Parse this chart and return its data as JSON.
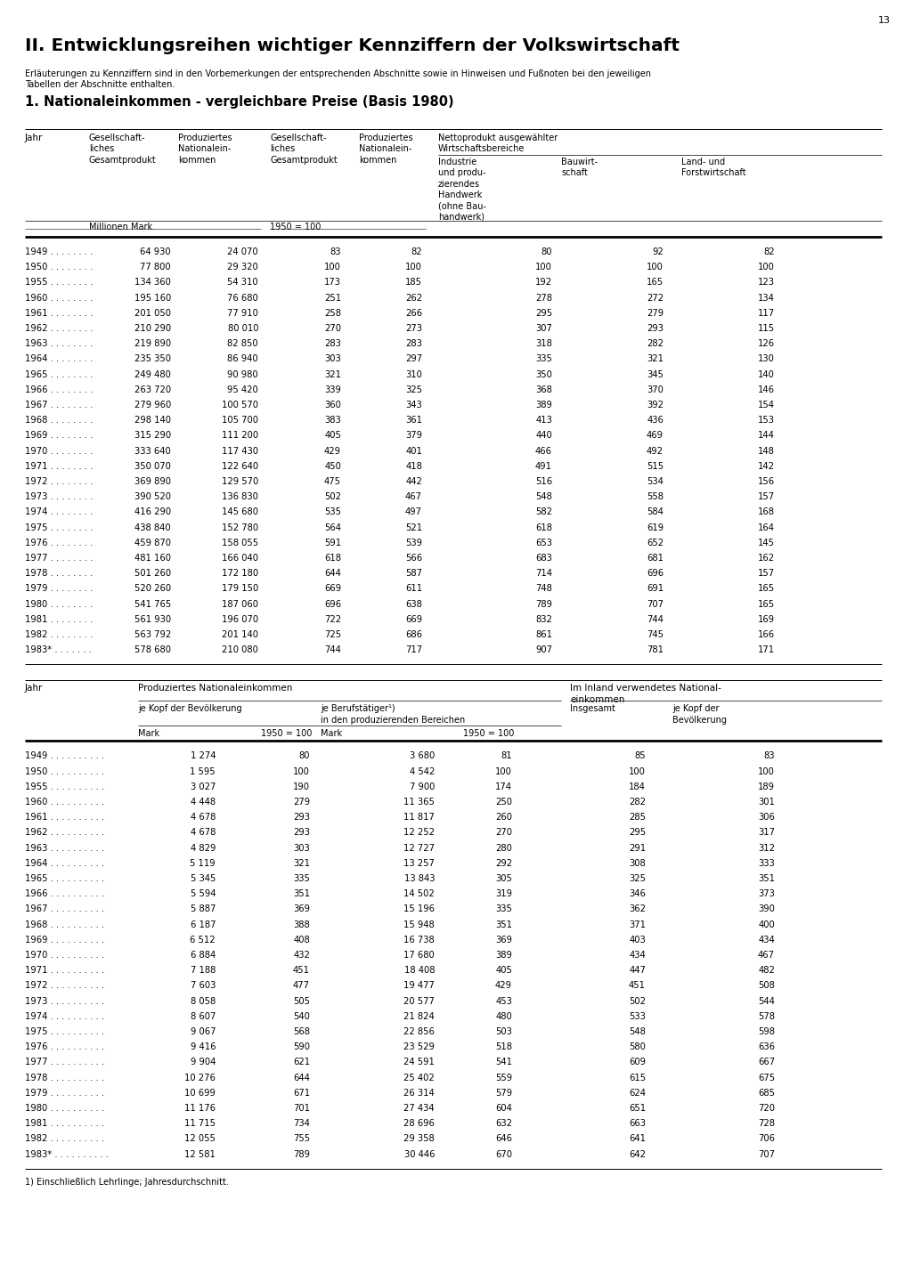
{
  "page_number": "13",
  "main_title": "II. Entwicklungsreihen wichtiger Kennziffern der Volkswirtschaft",
  "subtitle": "Erläuterungen zu Kennziffern sind in den Vorbemerkungen der entsprechenden Abschnitte sowie in Hinweisen und Fußnoten bei den jeweiligen\nTabellen der Abschnitte enthalten.",
  "section_title": "1. Nationaleinkommen - vergleichbare Preise (Basis 1980)",
  "table1_data": [
    [
      "1949 . . . . . . . .",
      "64 930",
      "24 070",
      "83",
      "82",
      "80",
      "92",
      "82"
    ],
    [
      "1950 . . . . . . . .",
      "77 800",
      "29 320",
      "100",
      "100",
      "100",
      "100",
      "100"
    ],
    [
      "1955 . . . . . . . .",
      "134 360",
      "54 310",
      "173",
      "185",
      "192",
      "165",
      "123"
    ],
    [
      "1960 . . . . . . . .",
      "195 160",
      "76 680",
      "251",
      "262",
      "278",
      "272",
      "134"
    ],
    [
      "1961 . . . . . . . .",
      "201 050",
      "77 910",
      "258",
      "266",
      "295",
      "279",
      "117"
    ],
    [
      "1962 . . . . . . . .",
      "210 290",
      "80 010",
      "270",
      "273",
      "307",
      "293",
      "115"
    ],
    [
      "1963 . . . . . . . .",
      "219 890",
      "82 850",
      "283",
      "283",
      "318",
      "282",
      "126"
    ],
    [
      "1964 . . . . . . . .",
      "235 350",
      "86 940",
      "303",
      "297",
      "335",
      "321",
      "130"
    ],
    [
      "1965 . . . . . . . .",
      "249 480",
      "90 980",
      "321",
      "310",
      "350",
      "345",
      "140"
    ],
    [
      "1966 . . . . . . . .",
      "263 720",
      "95 420",
      "339",
      "325",
      "368",
      "370",
      "146"
    ],
    [
      "1967 . . . . . . . .",
      "279 960",
      "100 570",
      "360",
      "343",
      "389",
      "392",
      "154"
    ],
    [
      "1968 . . . . . . . .",
      "298 140",
      "105 700",
      "383",
      "361",
      "413",
      "436",
      "153"
    ],
    [
      "1969 . . . . . . . .",
      "315 290",
      "111 200",
      "405",
      "379",
      "440",
      "469",
      "144"
    ],
    [
      "1970 . . . . . . . .",
      "333 640",
      "117 430",
      "429",
      "401",
      "466",
      "492",
      "148"
    ],
    [
      "1971 . . . . . . . .",
      "350 070",
      "122 640",
      "450",
      "418",
      "491",
      "515",
      "142"
    ],
    [
      "1972 . . . . . . . .",
      "369 890",
      "129 570",
      "475",
      "442",
      "516",
      "534",
      "156"
    ],
    [
      "1973 . . . . . . . .",
      "390 520",
      "136 830",
      "502",
      "467",
      "548",
      "558",
      "157"
    ],
    [
      "1974 . . . . . . . .",
      "416 290",
      "145 680",
      "535",
      "497",
      "582",
      "584",
      "168"
    ],
    [
      "1975 . . . . . . . .",
      "438 840",
      "152 780",
      "564",
      "521",
      "618",
      "619",
      "164"
    ],
    [
      "1976 . . . . . . . .",
      "459 870",
      "158 055",
      "591",
      "539",
      "653",
      "652",
      "145"
    ],
    [
      "1977 . . . . . . . .",
      "481 160",
      "166 040",
      "618",
      "566",
      "683",
      "681",
      "162"
    ],
    [
      "1978 . . . . . . . .",
      "501 260",
      "172 180",
      "644",
      "587",
      "714",
      "696",
      "157"
    ],
    [
      "1979 . . . . . . . .",
      "520 260",
      "179 150",
      "669",
      "611",
      "748",
      "691",
      "165"
    ],
    [
      "1980 . . . . . . . .",
      "541 765",
      "187 060",
      "696",
      "638",
      "789",
      "707",
      "165"
    ],
    [
      "1981 . . . . . . . .",
      "561 930",
      "196 070",
      "722",
      "669",
      "832",
      "744",
      "169"
    ],
    [
      "1982 . . . . . . . .",
      "563 792",
      "201 140",
      "725",
      "686",
      "861",
      "745",
      "166"
    ],
    [
      "1983* . . . . . . .",
      "578 680",
      "210 080",
      "744",
      "717",
      "907",
      "781",
      "171"
    ]
  ],
  "table2_data": [
    [
      "1949 . . . . . . . . . .",
      "1 274",
      "80",
      "3 680",
      "81",
      "85",
      "83"
    ],
    [
      "1950 . . . . . . . . . .",
      "1 595",
      "100",
      "4 542",
      "100",
      "100",
      "100"
    ],
    [
      "1955 . . . . . . . . . .",
      "3 027",
      "190",
      "7 900",
      "174",
      "184",
      "189"
    ],
    [
      "1960 . . . . . . . . . .",
      "4 448",
      "279",
      "11 365",
      "250",
      "282",
      "301"
    ],
    [
      "1961 . . . . . . . . . .",
      "4 678",
      "293",
      "11 817",
      "260",
      "285",
      "306"
    ],
    [
      "1962 . . . . . . . . . .",
      "4 678",
      "293",
      "12 252",
      "270",
      "295",
      "317"
    ],
    [
      "1963 . . . . . . . . . .",
      "4 829",
      "303",
      "12 727",
      "280",
      "291",
      "312"
    ],
    [
      "1964 . . . . . . . . . .",
      "5 119",
      "321",
      "13 257",
      "292",
      "308",
      "333"
    ],
    [
      "1965 . . . . . . . . . .",
      "5 345",
      "335",
      "13 843",
      "305",
      "325",
      "351"
    ],
    [
      "1966 . . . . . . . . . .",
      "5 594",
      "351",
      "14 502",
      "319",
      "346",
      "373"
    ],
    [
      "1967 . . . . . . . . . .",
      "5 887",
      "369",
      "15 196",
      "335",
      "362",
      "390"
    ],
    [
      "1968 . . . . . . . . . .",
      "6 187",
      "388",
      "15 948",
      "351",
      "371",
      "400"
    ],
    [
      "1969 . . . . . . . . . .",
      "6 512",
      "408",
      "16 738",
      "369",
      "403",
      "434"
    ],
    [
      "1970 . . . . . . . . . .",
      "6 884",
      "432",
      "17 680",
      "389",
      "434",
      "467"
    ],
    [
      "1971 . . . . . . . . . .",
      "7 188",
      "451",
      "18 408",
      "405",
      "447",
      "482"
    ],
    [
      "1972 . . . . . . . . . .",
      "7 603",
      "477",
      "19 477",
      "429",
      "451",
      "508"
    ],
    [
      "1973 . . . . . . . . . .",
      "8 058",
      "505",
      "20 577",
      "453",
      "502",
      "544"
    ],
    [
      "1974 . . . . . . . . . .",
      "8 607",
      "540",
      "21 824",
      "480",
      "533",
      "578"
    ],
    [
      "1975 . . . . . . . . . .",
      "9 067",
      "568",
      "22 856",
      "503",
      "548",
      "598"
    ],
    [
      "1976 . . . . . . . . . .",
      "9 416",
      "590",
      "23 529",
      "518",
      "580",
      "636"
    ],
    [
      "1977 . . . . . . . . . .",
      "9 904",
      "621",
      "24 591",
      "541",
      "609",
      "667"
    ],
    [
      "1978 . . . . . . . . . .",
      "10 276",
      "644",
      "25 402",
      "559",
      "615",
      "675"
    ],
    [
      "1979 . . . . . . . . . .",
      "10 699",
      "671",
      "26 314",
      "579",
      "624",
      "685"
    ],
    [
      "1980 . . . . . . . . . .",
      "11 176",
      "701",
      "27 434",
      "604",
      "651",
      "720"
    ],
    [
      "1981 . . . . . . . . . .",
      "11 715",
      "734",
      "28 696",
      "632",
      "663",
      "728"
    ],
    [
      "1982 . . . . . . . . . .",
      "12 055",
      "755",
      "29 358",
      "646",
      "641",
      "706"
    ],
    [
      "1983* . . . . . . . . . .",
      "12 581",
      "789",
      "30 446",
      "670",
      "642",
      "707"
    ]
  ],
  "footnote": "1) Einschließlich Lehrlinge; Jahresdurchschnitt."
}
